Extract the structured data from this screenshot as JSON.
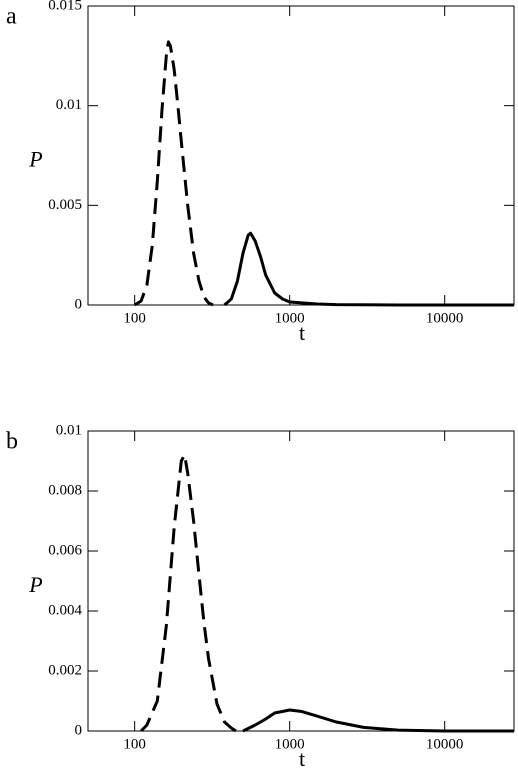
{
  "chart_data": [
    {
      "type": "line",
      "panel": "a",
      "ylabel": "P",
      "xlabel": "t",
      "xlog": true,
      "xlim": [
        50,
        28000
      ],
      "ylim": [
        0,
        0.015
      ],
      "xticks": [
        100,
        1000,
        10000
      ],
      "yticks": [
        0,
        0.005,
        0.01,
        0.015
      ],
      "series": [
        {
          "color": "#000000",
          "dashed": true,
          "x": [
            100,
            110,
            120,
            130,
            140,
            150,
            160,
            165,
            170,
            180,
            190,
            200,
            220,
            240,
            260,
            280,
            300,
            320
          ],
          "values": [
            0,
            0.0002,
            0.001,
            0.003,
            0.0062,
            0.0098,
            0.0125,
            0.0132,
            0.013,
            0.0118,
            0.01,
            0.0082,
            0.005,
            0.0026,
            0.0012,
            0.0004,
            0.0001,
            0
          ]
        },
        {
          "color": "#000000",
          "dashed": false,
          "x": [
            380,
            420,
            460,
            500,
            540,
            560,
            600,
            650,
            700,
            800,
            900,
            1000,
            1500,
            2000,
            5000,
            28000
          ],
          "values": [
            0,
            0.0003,
            0.0012,
            0.0026,
            0.0035,
            0.0036,
            0.0032,
            0.0024,
            0.0015,
            0.0006,
            0.0003,
            0.00015,
            5e-05,
            2e-05,
            0,
            0
          ]
        }
      ]
    },
    {
      "type": "line",
      "panel": "b",
      "ylabel": "P",
      "xlabel": "t",
      "xlog": true,
      "xlim": [
        50,
        28000
      ],
      "ylim": [
        0,
        0.01
      ],
      "xticks": [
        100,
        1000,
        10000
      ],
      "yticks": [
        0,
        0.002,
        0.004,
        0.006,
        0.008,
        0.01
      ],
      "series": [
        {
          "color": "#000000",
          "dashed": true,
          "x": [
            110,
            120,
            140,
            160,
            180,
            200,
            210,
            220,
            240,
            260,
            280,
            300,
            340,
            380,
            420,
            450
          ],
          "values": [
            0,
            0.0002,
            0.001,
            0.0035,
            0.0068,
            0.009,
            0.0092,
            0.0086,
            0.007,
            0.0052,
            0.0036,
            0.0024,
            0.0009,
            0.0003,
            0.0001,
            0
          ]
        },
        {
          "color": "#000000",
          "dashed": false,
          "x": [
            500,
            600,
            700,
            800,
            1000,
            1200,
            1500,
            2000,
            3000,
            5000,
            10000,
            28000
          ],
          "values": [
            0,
            0.0002,
            0.0004,
            0.0006,
            0.0007,
            0.00065,
            0.0005,
            0.0003,
            0.00012,
            3e-05,
            0,
            0
          ]
        }
      ]
    }
  ]
}
